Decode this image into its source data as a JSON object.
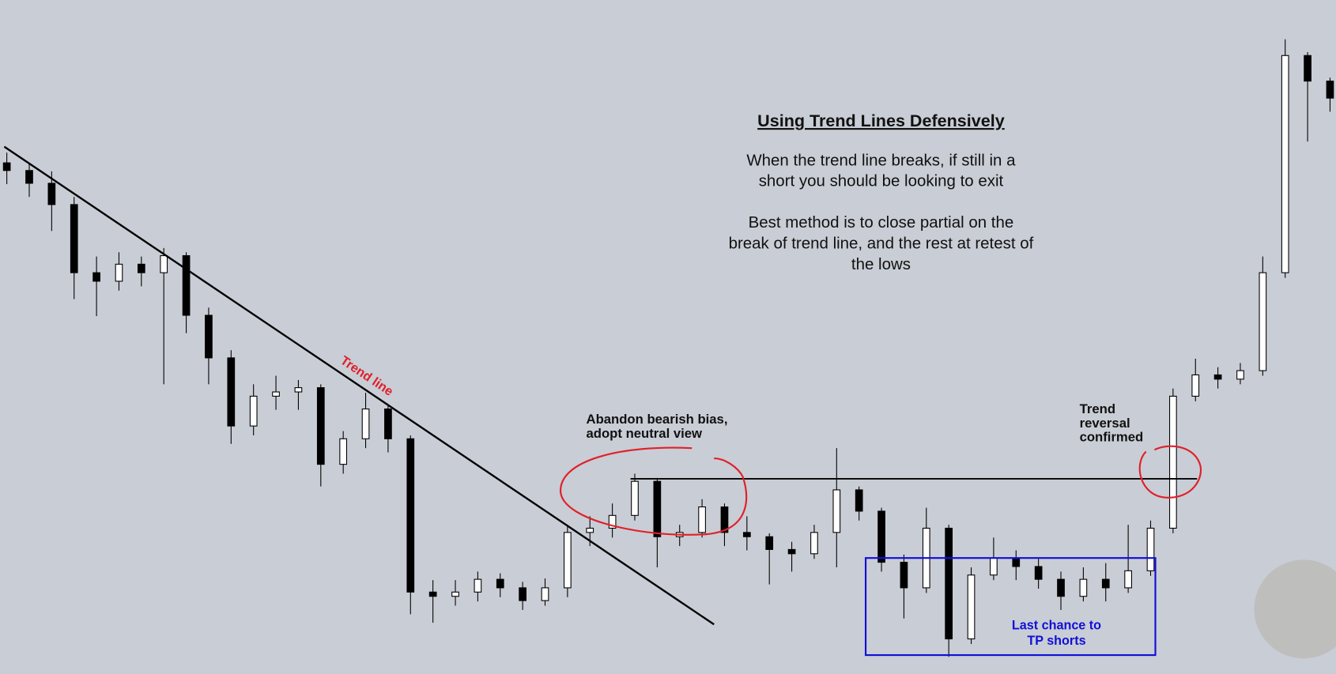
{
  "chart_data": {
    "type": "candlestick",
    "title": "Using Trend Lines Defensively",
    "annotations": [
      {
        "lines": [
          "When the trend line breaks, if still in a",
          "short you should be looking to exit"
        ]
      },
      {
        "lines": [
          "Best method is to close partial on the",
          "break of trend line, and the rest at retest of",
          "the lows"
        ]
      },
      {
        "lines": [
          "Trend line"
        ]
      },
      {
        "lines": [
          "Abandon bearish bias,",
          "adopt neutral view"
        ]
      },
      {
        "lines": [
          "Trend",
          "reversal",
          "confirmed"
        ]
      },
      {
        "lines": [
          "Last chance to",
          "TP shorts"
        ]
      }
    ],
    "ylim": [
      0,
      791
    ],
    "open": [
      600,
      591,
      576,
      551,
      471,
      461,
      481,
      471,
      491,
      421,
      371,
      291,
      326,
      331,
      336,
      246,
      276,
      311,
      276,
      96,
      91,
      96,
      111,
      101,
      86,
      101,
      166,
      171,
      186,
      226,
      161,
      166,
      196,
      166,
      161,
      146,
      141,
      166,
      216,
      191,
      131,
      101,
      171,
      41,
      116,
      136,
      126,
      111,
      91,
      111,
      101,
      121,
      171,
      326,
      351,
      346,
      356,
      471,
      726,
      696
    ],
    "high": [
      612,
      600,
      590,
      560,
      490,
      495,
      490,
      500,
      495,
      430,
      380,
      340,
      350,
      345,
      340,
      285,
      330,
      315,
      280,
      110,
      110,
      120,
      118,
      108,
      112,
      175,
      185,
      200,
      235,
      230,
      175,
      205,
      200,
      185,
      165,
      155,
      175,
      265,
      220,
      195,
      140,
      195,
      175,
      125,
      160,
      145,
      135,
      120,
      125,
      130,
      175,
      180,
      335,
      370,
      360,
      365,
      490,
      745,
      730,
      700
    ],
    "low": [
      575,
      560,
      520,
      440,
      420,
      450,
      455,
      340,
      400,
      340,
      270,
      280,
      310,
      310,
      220,
      235,
      265,
      260,
      70,
      60,
      80,
      85,
      90,
      75,
      80,
      90,
      150,
      160,
      180,
      125,
      150,
      160,
      150,
      145,
      105,
      120,
      135,
      125,
      180,
      120,
      65,
      95,
      20,
      35,
      110,
      110,
      100,
      75,
      85,
      85,
      95,
      115,
      165,
      320,
      335,
      340,
      350,
      465,
      625,
      660
    ],
    "close": [
      591,
      576,
      551,
      471,
      461,
      481,
      471,
      491,
      421,
      371,
      291,
      326,
      331,
      336,
      246,
      276,
      311,
      276,
      96,
      91,
      96,
      111,
      101,
      86,
      101,
      166,
      171,
      186,
      226,
      161,
      166,
      196,
      166,
      161,
      146,
      141,
      166,
      216,
      191,
      131,
      101,
      171,
      41,
      116,
      136,
      126,
      111,
      91,
      111,
      101,
      121,
      171,
      326,
      351,
      346,
      356,
      471,
      726,
      696,
      676
    ],
    "up_color": "#ffffff",
    "down_color": "#000000"
  }
}
